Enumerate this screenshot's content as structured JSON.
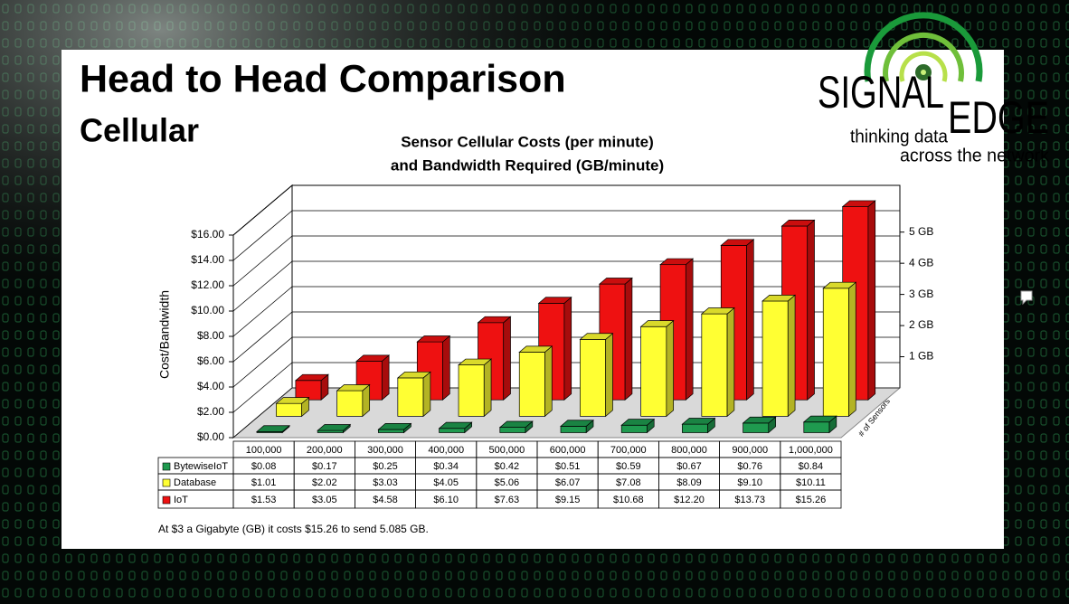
{
  "slide": {
    "title": "Head to Head Comparison",
    "subtitle": "Cellular",
    "footnote": "At $3 a Gigabyte (GB) it costs $15.26 to send 5.085 GB."
  },
  "logo": {
    "word_left": "SIGNAL",
    "word_right": "EDGE",
    "tagline": [
      "thinking data",
      "across the network"
    ]
  },
  "chart_data": {
    "type": "bar3d",
    "title": [
      "Sensor Cellular Costs (per minute)",
      "and Bandwidth Required (GB/minute)"
    ],
    "y_label": "Cost/Bandwidth",
    "depth_label": "# of Sensors",
    "categories": [
      "100,000",
      "200,000",
      "300,000",
      "400,000",
      "500,000",
      "600,000",
      "700,000",
      "800,000",
      "900,000",
      "1,000,000"
    ],
    "series": [
      {
        "name": "BytewiseIoT",
        "color": "#1f9a4f",
        "values": [
          0.08,
          0.17,
          0.25,
          0.34,
          0.42,
          0.51,
          0.59,
          0.67,
          0.76,
          0.84
        ],
        "value_labels": [
          "$0.08",
          "$0.17",
          "$0.25",
          "$0.34",
          "$0.42",
          "$0.51",
          "$0.59",
          "$0.67",
          "$0.76",
          "$0.84"
        ]
      },
      {
        "name": "Database",
        "color": "#ffff33",
        "values": [
          1.01,
          2.02,
          3.03,
          4.05,
          5.06,
          6.07,
          7.08,
          8.09,
          9.1,
          10.11
        ],
        "value_labels": [
          "$1.01",
          "$2.02",
          "$3.03",
          "$4.05",
          "$5.06",
          "$6.07",
          "$7.08",
          "$8.09",
          "$9.10",
          "$10.11"
        ]
      },
      {
        "name": "IoT",
        "color": "#ee1111",
        "values": [
          1.53,
          3.05,
          4.58,
          6.1,
          7.63,
          9.15,
          10.68,
          12.2,
          13.73,
          15.26
        ],
        "value_labels": [
          "$1.53",
          "$3.05",
          "$4.58",
          "$6.10",
          "$7.63",
          "$9.15",
          "$10.68",
          "$12.20",
          "$13.73",
          "$15.26"
        ]
      }
    ],
    "ylim": [
      0,
      16
    ],
    "yticks": [
      {
        "value": 0,
        "label": "$0.00"
      },
      {
        "value": 2,
        "label": "$2.00"
      },
      {
        "value": 4,
        "label": "$4.00"
      },
      {
        "value": 6,
        "label": "$6.00"
      },
      {
        "value": 8,
        "label": "$8.00"
      },
      {
        "value": 10,
        "label": "$10.00"
      },
      {
        "value": 12,
        "label": "$12.00"
      },
      {
        "value": 14,
        "label": "$14.00"
      },
      {
        "value": 16,
        "label": "$16.00"
      }
    ],
    "y2lim": [
      0,
      6.5
    ],
    "y2ticks": [
      {
        "value": 1,
        "label": "1 GB"
      },
      {
        "value": 2,
        "label": "2 GB"
      },
      {
        "value": 3,
        "label": "3 GB"
      },
      {
        "value": 4,
        "label": "4 GB"
      },
      {
        "value": 5,
        "label": "5 GB"
      }
    ],
    "grid": true
  }
}
